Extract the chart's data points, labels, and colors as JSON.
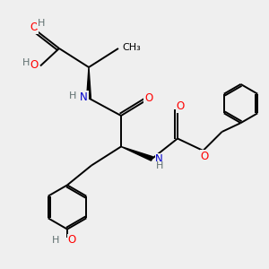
{
  "bg_color": "#efefef",
  "atom_color_O": "#ff0000",
  "atom_color_N": "#0000cc",
  "atom_color_H_gray": "#607070",
  "bond_color": "#000000",
  "bond_width": 1.4,
  "font_size": 8.5,
  "fig_w": 3.0,
  "fig_h": 3.0,
  "dpi": 100,
  "xlim": [
    0,
    10
  ],
  "ylim": [
    0,
    10
  ]
}
